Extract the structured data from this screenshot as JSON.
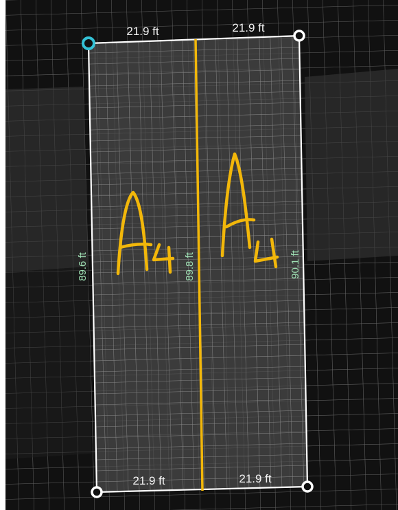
{
  "colors": {
    "background": "#111111",
    "grid": "#8a8a8a",
    "parcel": "#3a3a3a",
    "outline": "#ffffff",
    "divider": "#f2b70a",
    "measure_top": "#f2f2f2",
    "measure_side": "#9fe0b4",
    "selected_handle": "#34c2d6",
    "annotation": "#f2b70a"
  },
  "measurements": {
    "top_left": "21.9 ft",
    "top_right": "21.9 ft",
    "bottom_left": "21.9 ft",
    "bottom_right": "21.9 ft",
    "left_side": "89.6 ft",
    "center": "89.8 ft",
    "right_side": "90.1 ft"
  },
  "annotations": {
    "left": "A4",
    "right": "A4"
  },
  "handles": [
    {
      "name": "top-left",
      "selected": true
    },
    {
      "name": "top-right",
      "selected": false
    },
    {
      "name": "bottom-left",
      "selected": false
    },
    {
      "name": "bottom-right",
      "selected": false
    }
  ]
}
